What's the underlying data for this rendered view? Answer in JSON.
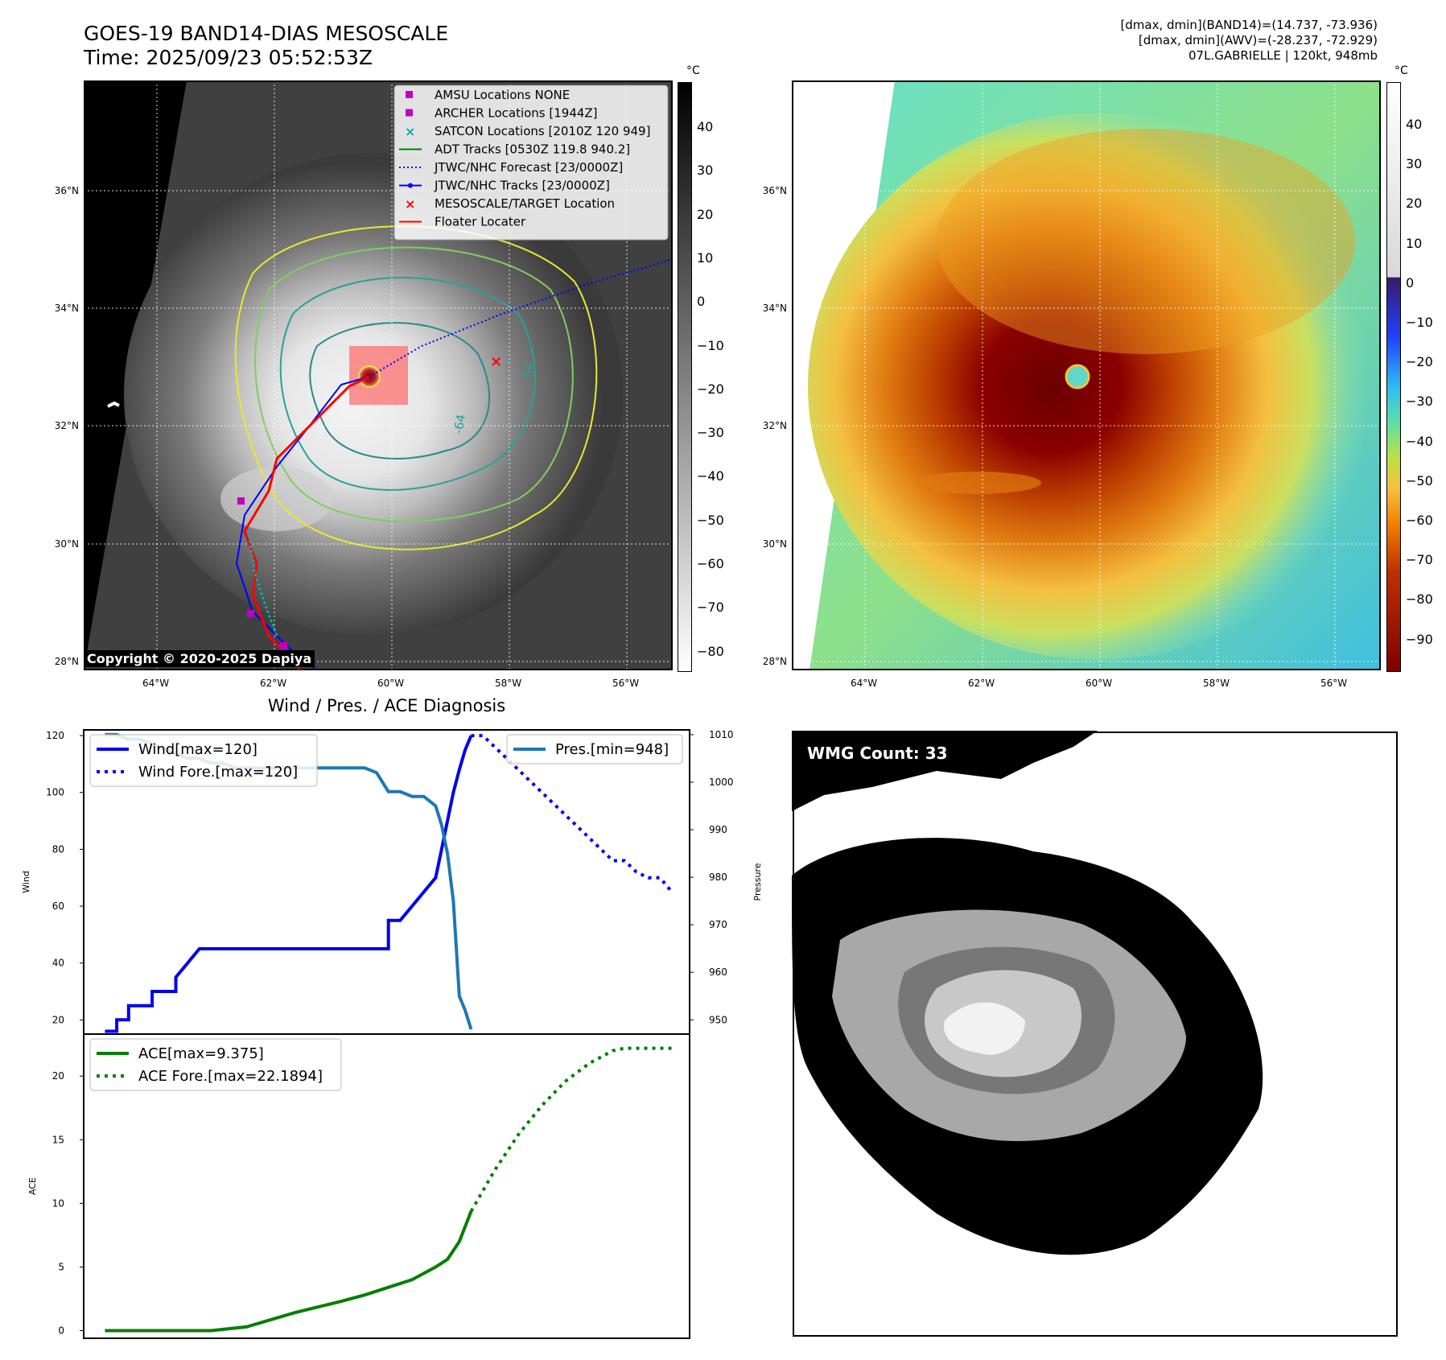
{
  "header": {
    "title_line1": "GOES-19 BAND14-DIAS MESOSCALE",
    "title_line2": "Time: 2025/09/23 05:52:53Z",
    "info_line1": "[dmax, dmin](BAND14)=(14.737, -73.936)",
    "info_line2": "[dmax, dmin](AWV)=(-28.237, -72.929)",
    "info_line3": "07L.GABRIELLE | 120kt, 948mb"
  },
  "map": {
    "lat_labels": [
      "36°N",
      "34°N",
      "32°N",
      "30°N",
      "28°N"
    ],
    "lon_labels": [
      "64°W",
      "62°W",
      "60°W",
      "58°W",
      "56°W"
    ],
    "copyright": "Copyright © 2020-2025 Dapiya",
    "contour_labels": [
      "-54",
      "-64"
    ],
    "legend": [
      {
        "label": "AMSU Locations NONE",
        "marker": "square",
        "color": "#c000c0"
      },
      {
        "label": "ARCHER Locations [1944Z]",
        "marker": "square",
        "color": "#c000c0"
      },
      {
        "label": "SATCON Locations [2010Z 120 949]",
        "marker": "x",
        "color": "#00b0b0"
      },
      {
        "label": "ADT Tracks [0530Z 119.8 940.2]",
        "marker": "line",
        "color": "#008000"
      },
      {
        "label": "JTWC/NHC Forecast [23/0000Z]",
        "marker": "dotted",
        "color": "#0000ff"
      },
      {
        "label": "JTWC/NHC Tracks [23/0000Z]",
        "marker": "line-dot",
        "color": "#0000ff"
      },
      {
        "label": "MESOSCALE/TARGET Location",
        "marker": "x",
        "color": "#ff0000"
      },
      {
        "label": "Floater Locater",
        "marker": "line",
        "color": "#ff0000"
      }
    ]
  },
  "colorbar_ir": {
    "unit": "°C",
    "ticks": [
      "40",
      "30",
      "20",
      "10",
      "0",
      "−10",
      "−20",
      "−30",
      "−40",
      "−50",
      "−60",
      "−70",
      "−80"
    ]
  },
  "colorbar_color": {
    "unit": "°C",
    "ticks": [
      "40",
      "30",
      "20",
      "10",
      "0",
      "−10",
      "−20",
      "−30",
      "−40",
      "−50",
      "−60",
      "−70",
      "−80",
      "−90"
    ]
  },
  "diagnosis": {
    "title": "Wind / Pres. / ACE Diagnosis"
  },
  "wmg": {
    "label": "WMG Count: 33"
  },
  "colors": {
    "wind": "#0000ee",
    "pressure": "#1f77b4",
    "ace": "#007f00"
  },
  "chart_data": [
    {
      "type": "line",
      "title": "Wind / Pres. / ACE Diagnosis",
      "ylabel": "Wind",
      "y2label": "Pressure",
      "ylim": [
        15,
        122
      ],
      "y2lim": [
        947,
        1011
      ],
      "yticks": [
        20,
        40,
        60,
        80,
        100,
        120
      ],
      "y2ticks": [
        950,
        960,
        970,
        980,
        990,
        1000,
        1010
      ],
      "series": [
        {
          "name": "Wind[max=120]",
          "style": "solid",
          "axis": "left",
          "x": [
            0,
            1,
            1,
            2,
            2,
            3,
            3,
            4,
            4,
            5,
            5,
            6,
            6,
            7,
            8,
            9,
            10,
            11,
            12,
            13,
            14,
            15,
            16,
            17,
            18,
            19,
            20,
            21,
            22,
            23,
            24,
            24,
            25,
            25,
            26,
            27,
            28,
            28.5,
            29,
            29.5,
            30,
            30.5,
            31
          ],
          "values": [
            16,
            16,
            20,
            20,
            25,
            25,
            25,
            25,
            30,
            30,
            30,
            30,
            35,
            40,
            45,
            45,
            45,
            45,
            45,
            45,
            45,
            45,
            45,
            45,
            45,
            45,
            45,
            45,
            45,
            45,
            45,
            55,
            55,
            55,
            60,
            65,
            70,
            80,
            90,
            100,
            108,
            115,
            120
          ]
        },
        {
          "name": "Wind Fore.[max=120]",
          "style": "dotted",
          "axis": "left",
          "x": [
            31,
            32,
            33,
            34,
            35,
            36,
            37,
            38,
            39,
            40,
            41,
            42,
            43,
            44,
            45,
            46,
            47,
            48
          ],
          "values": [
            120,
            120,
            116,
            112,
            108,
            104,
            100,
            96,
            92,
            88,
            84,
            80,
            76,
            76,
            72,
            70,
            70,
            65
          ]
        },
        {
          "name": "Pres.[min=948]",
          "style": "solid",
          "axis": "right",
          "x": [
            0,
            1,
            2,
            3,
            4,
            5,
            6,
            7,
            8,
            9,
            10,
            11,
            12,
            13,
            14,
            15,
            16,
            17,
            18,
            19,
            20,
            21,
            22,
            23,
            24,
            25,
            26,
            27,
            28,
            28.5,
            29,
            29.5,
            30,
            30.5,
            31
          ],
          "values": [
            1010,
            1010,
            1009,
            1009,
            1008,
            1007,
            1006,
            1005,
            1005,
            1004,
            1004,
            1003,
            1003,
            1003,
            1003,
            1003,
            1003,
            1003,
            1003,
            1003,
            1003,
            1003,
            1003,
            1002,
            998,
            998,
            997,
            997,
            995,
            991,
            985,
            975,
            955,
            952,
            948
          ]
        }
      ]
    },
    {
      "type": "line",
      "ylabel": "ACE",
      "ylim": [
        -0.6,
        23.3
      ],
      "yticks": [
        0,
        5,
        10,
        15,
        20
      ],
      "series": [
        {
          "name": "ACE[max=9.375]",
          "style": "solid",
          "x": [
            0,
            4,
            8,
            9,
            12,
            16,
            20,
            22,
            24,
            26,
            28,
            29,
            30,
            31
          ],
          "values": [
            0,
            0,
            0,
            0,
            0.3,
            1.4,
            2.3,
            2.8,
            3.4,
            4.0,
            5.0,
            5.6,
            7.0,
            9.375
          ]
        },
        {
          "name": "ACE Fore.[max=22.1894]",
          "style": "dotted",
          "x": [
            31,
            33,
            35,
            37,
            39,
            41,
            43,
            44,
            45,
            46,
            48
          ],
          "values": [
            9.375,
            12.6,
            15.4,
            17.7,
            19.6,
            21.0,
            22.0,
            22.19,
            22.19,
            22.19,
            22.19
          ]
        }
      ]
    }
  ]
}
